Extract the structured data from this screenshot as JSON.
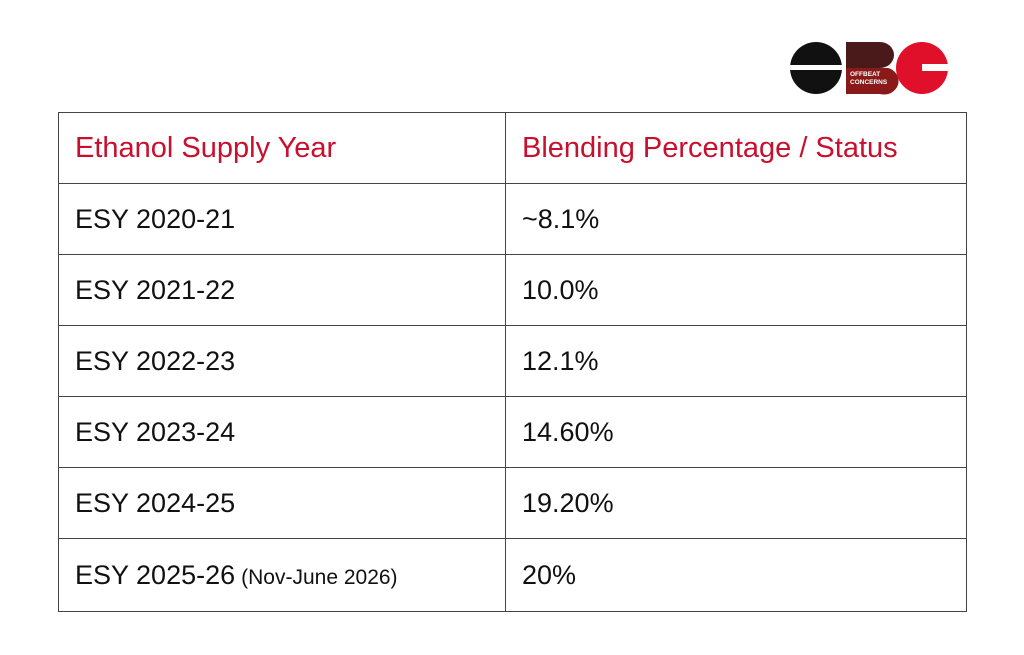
{
  "logo": {
    "name": "OFFBEAT CONCERNS",
    "line1": "OFFBEAT",
    "line2": "CONCERNS",
    "colors": {
      "black": "#111111",
      "red": "#e0102a",
      "brown": "#4a1a1a"
    }
  },
  "table": {
    "headers": {
      "col1": "Ethanol Supply Year",
      "col2": "Blending Percentage / Status"
    },
    "rows": [
      {
        "year": "ESY 2020-21",
        "note": "",
        "value": "~8.1%"
      },
      {
        "year": "ESY 2021-22",
        "note": "",
        "value": "10.0%"
      },
      {
        "year": "ESY 2022-23",
        "note": "",
        "value": "12.1%"
      },
      {
        "year": "ESY 2023-24",
        "note": "",
        "value": "14.60%"
      },
      {
        "year": "ESY 2024-25",
        "note": "",
        "value": "19.20%"
      },
      {
        "year": "ESY 2025-26",
        "note": "(Nov-June 2026)",
        "value": "20%"
      }
    ]
  },
  "colors": {
    "header_text": "#c8102e",
    "body_text": "#111111",
    "border": "#444444"
  }
}
